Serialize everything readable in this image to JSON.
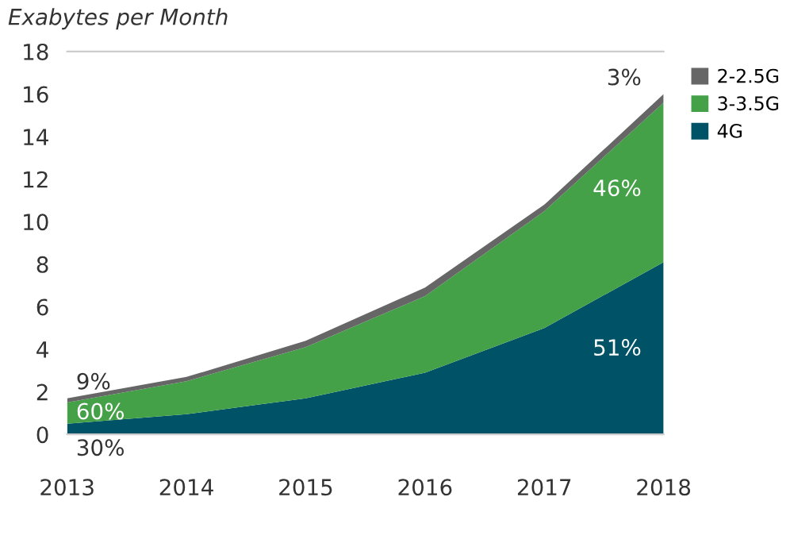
{
  "chart_data": {
    "type": "area",
    "stacked": true,
    "ylabel": "Exabytes per Month",
    "categories": [
      "2013",
      "2014",
      "2015",
      "2016",
      "2017",
      "2018"
    ],
    "series": [
      {
        "name": "4G",
        "color": "#005366",
        "values": [
          0.5,
          0.95,
          1.7,
          2.9,
          5.0,
          8.1
        ]
      },
      {
        "name": "3-3.5G",
        "color": "#45a148",
        "values": [
          1.0,
          1.55,
          2.4,
          3.6,
          5.5,
          7.5
        ]
      },
      {
        "name": "2-2.5G",
        "color": "#666666",
        "values": [
          0.2,
          0.2,
          0.3,
          0.4,
          0.3,
          0.4
        ]
      }
    ],
    "ylim": [
      0,
      18
    ],
    "yticks": [
      0,
      2,
      4,
      6,
      8,
      10,
      12,
      14,
      16,
      18
    ],
    "grid": false,
    "legend": "top right",
    "annotations": [
      {
        "text": "9%",
        "x": "2013",
        "y": 1.7
      },
      {
        "text": "60%",
        "x": "2013",
        "y": 1.0
      },
      {
        "text": "30%",
        "x": "2013",
        "y": 0
      },
      {
        "text": "3%",
        "x": "2018",
        "y": 16.0
      },
      {
        "text": "46%",
        "x": "2018",
        "y": 11.5
      },
      {
        "text": "51%",
        "x": "2018",
        "y": 4.0
      }
    ]
  }
}
